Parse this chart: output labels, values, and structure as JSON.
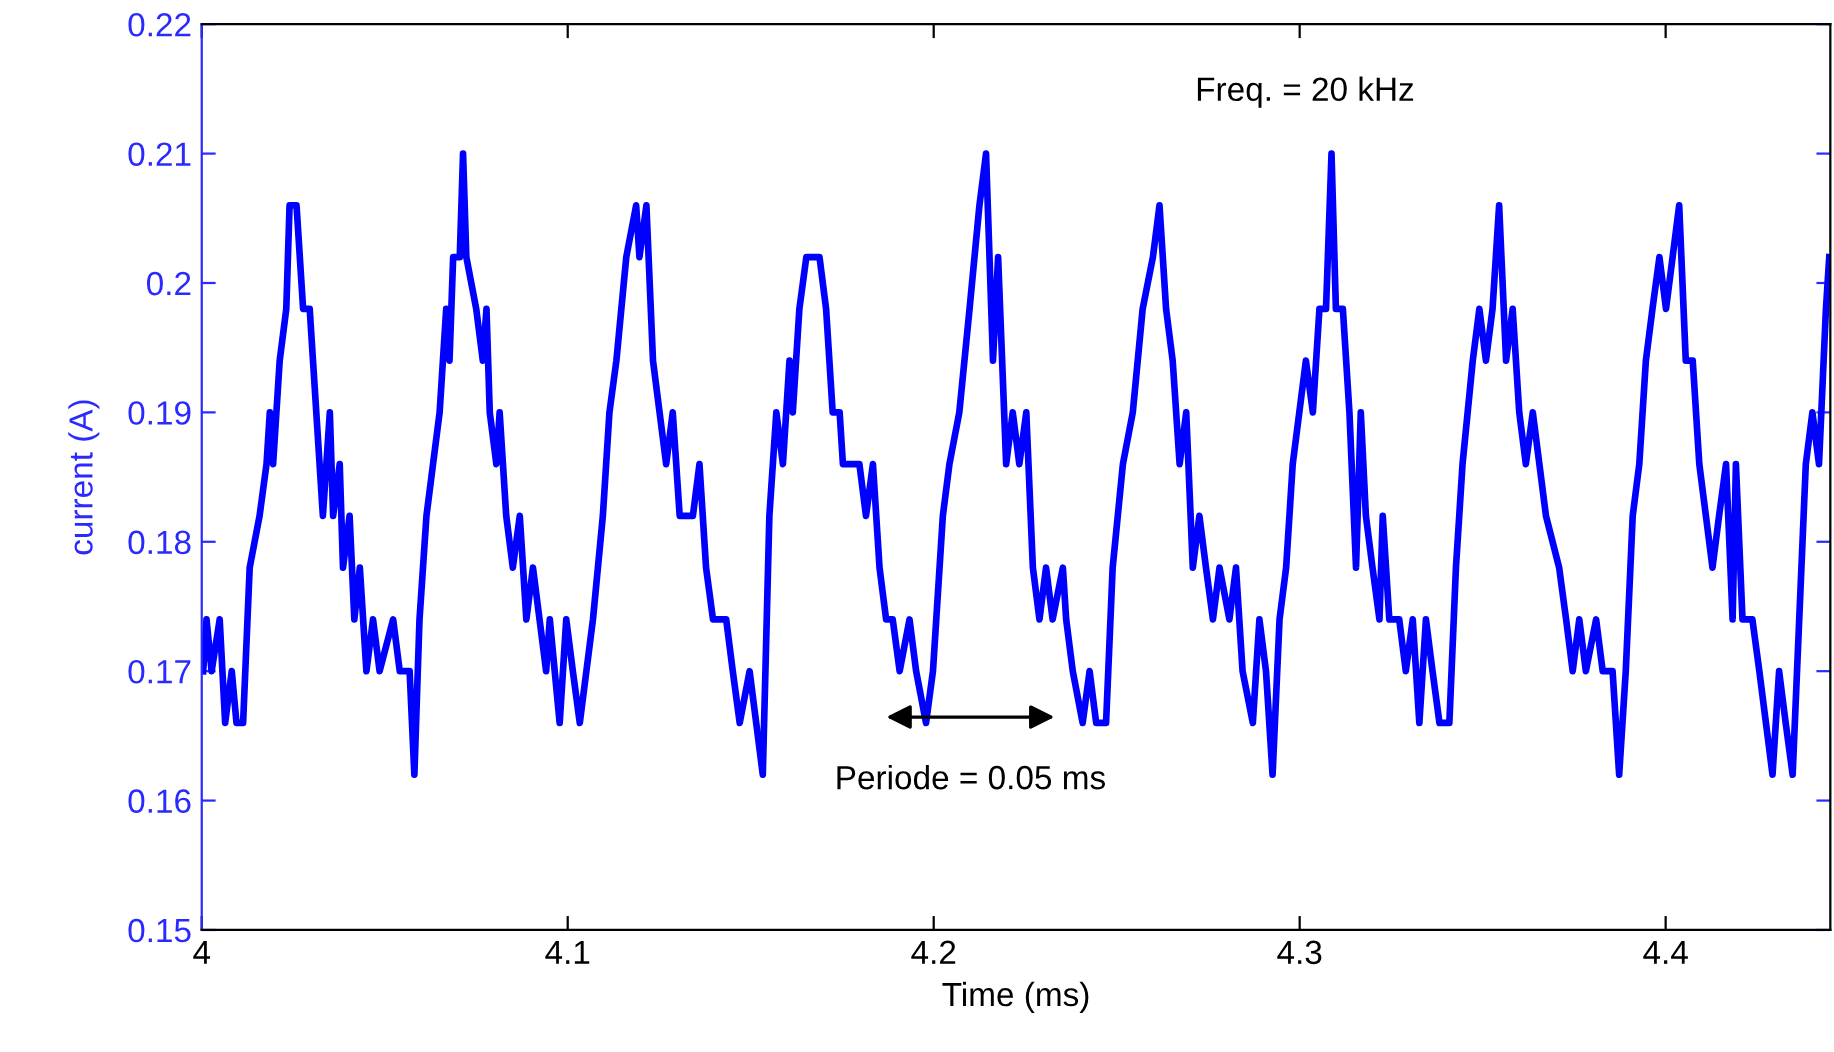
{
  "chart_data": {
    "type": "line",
    "xlabel": "Time (ms)",
    "ylabel": "current (A)",
    "xlim": [
      4,
      4.445
    ],
    "xticks": [
      4,
      4.1,
      4.2,
      4.3,
      4.4
    ],
    "ylim": [
      0.15,
      0.22
    ],
    "yticks": [
      0.15,
      0.16,
      0.17,
      0.18,
      0.19,
      0.2,
      0.21,
      0.22
    ],
    "grid": false,
    "marker": "none",
    "line_style": "solid",
    "annotations": [
      "Periode = 0.05 ms",
      "Freq. = 20 kHz"
    ],
    "series": [
      {
        "color": "#0000ff",
        "x": [
          4.0004,
          4.0013,
          4.0027,
          4.0049,
          4.0064,
          4.0082,
          4.0095,
          4.0113,
          4.0131,
          4.0158,
          4.0177,
          4.0186,
          4.0195,
          4.0213,
          4.0231,
          4.024,
          4.0259,
          4.0277,
          4.0295,
          4.0304,
          4.0331,
          4.035,
          4.0359,
          4.0377,
          4.0386,
          4.0404,
          4.0417,
          4.0432,
          4.045,
          4.0468,
          4.0486,
          4.0523,
          4.0541,
          4.0568,
          4.0581,
          4.0595,
          4.0614,
          4.0632,
          4.065,
          4.0668,
          4.0677,
          4.0687,
          4.0705,
          4.0714,
          4.0723,
          4.075,
          4.0768,
          4.0778,
          4.0787,
          4.0805,
          4.0814,
          4.0832,
          4.085,
          4.0869,
          4.0887,
          4.0905,
          4.0923,
          4.0941,
          4.0951,
          4.0978,
          4.0996,
          4.1014,
          4.1033,
          4.1051,
          4.1069,
          4.1096,
          4.1114,
          4.1133,
          4.116,
          4.1187,
          4.1196,
          4.1215,
          4.1233,
          4.1251,
          4.1269,
          4.1287,
          4.1306,
          4.1342,
          4.136,
          4.1378,
          4.1397,
          4.1433,
          4.1451,
          4.147,
          4.1497,
          4.1515,
          4.1533,
          4.1551,
          4.157,
          4.1588,
          4.1606,
          4.1615,
          4.1633,
          4.1652,
          4.1688,
          4.1706,
          4.1724,
          4.1743,
          4.1752,
          4.1797,
          4.1815,
          4.1834,
          4.1852,
          4.187,
          4.1888,
          4.1907,
          4.1934,
          4.1952,
          4.1979,
          4.1998,
          4.2025,
          4.2043,
          4.207,
          4.2098,
          4.2125,
          4.2143,
          4.2162,
          4.2176,
          4.2198,
          4.2216,
          4.2234,
          4.2253,
          4.2271,
          4.2289,
          4.2307,
          4.2325,
          4.2353,
          4.2362,
          4.238,
          4.2407,
          4.2426,
          4.2444,
          4.2471,
          4.2489,
          4.2517,
          4.2544,
          4.2571,
          4.2599,
          4.2617,
          4.2635,
          4.2653,
          4.2672,
          4.269,
          4.2708,
          4.2726,
          4.2744,
          4.2763,
          4.2781,
          4.2808,
          4.2826,
          4.2844,
          4.2872,
          4.289,
          4.2908,
          4.2926,
          4.2945,
          4.2963,
          4.2981,
          4.2999,
          4.3017,
          4.3036,
          4.3054,
          4.3072,
          4.3087,
          4.3099,
          4.3118,
          4.3136,
          4.3154,
          4.3167,
          4.3181,
          4.3199,
          4.3218,
          4.3227,
          4.3245,
          4.3272,
          4.329,
          4.3309,
          4.3327,
          4.3345,
          4.3363,
          4.3382,
          4.3409,
          4.3427,
          4.3445,
          4.3473,
          4.3491,
          4.3509,
          4.3527,
          4.3545,
          4.3564,
          4.3582,
          4.36,
          4.3618,
          4.3637,
          4.3655,
          4.3673,
          4.3709,
          4.3728,
          4.3746,
          4.3764,
          4.3782,
          4.381,
          4.3828,
          4.3855,
          4.3873,
          4.3891,
          4.391,
          4.3928,
          4.3946,
          4.3964,
          4.3983,
          4.4001,
          4.4019,
          4.4037,
          4.4055,
          4.4074,
          4.4092,
          4.411,
          4.4128,
          4.4146,
          4.4165,
          4.4183,
          4.4192,
          4.421,
          4.4237,
          4.4256,
          4.4274,
          4.4292,
          4.431,
          4.4328,
          4.4347,
          4.4365,
          4.4383,
          4.4401,
          4.4419,
          4.4438,
          4.4447
        ],
        "values": [
          0.17,
          0.174,
          0.17,
          0.174,
          0.166,
          0.17,
          0.166,
          0.166,
          0.178,
          0.182,
          0.186,
          0.19,
          0.186,
          0.194,
          0.198,
          0.206,
          0.206,
          0.198,
          0.198,
          0.194,
          0.182,
          0.19,
          0.182,
          0.186,
          0.178,
          0.182,
          0.174,
          0.178,
          0.17,
          0.174,
          0.17,
          0.174,
          0.17,
          0.17,
          0.162,
          0.174,
          0.182,
          0.186,
          0.19,
          0.198,
          0.194,
          0.202,
          0.202,
          0.21,
          0.202,
          0.198,
          0.194,
          0.198,
          0.19,
          0.186,
          0.19,
          0.182,
          0.178,
          0.182,
          0.174,
          0.178,
          0.174,
          0.17,
          0.174,
          0.166,
          0.174,
          0.17,
          0.166,
          0.17,
          0.174,
          0.182,
          0.19,
          0.194,
          0.202,
          0.206,
          0.202,
          0.206,
          0.194,
          0.19,
          0.186,
          0.19,
          0.182,
          0.182,
          0.186,
          0.178,
          0.174,
          0.174,
          0.17,
          0.166,
          0.17,
          0.166,
          0.162,
          0.182,
          0.19,
          0.186,
          0.194,
          0.19,
          0.198,
          0.202,
          0.202,
          0.198,
          0.19,
          0.19,
          0.186,
          0.186,
          0.182,
          0.186,
          0.178,
          0.174,
          0.174,
          0.17,
          0.174,
          0.17,
          0.166,
          0.17,
          0.182,
          0.186,
          0.19,
          0.198,
          0.206,
          0.21,
          0.194,
          0.202,
          0.186,
          0.19,
          0.186,
          0.19,
          0.178,
          0.174,
          0.178,
          0.174,
          0.178,
          0.174,
          0.17,
          0.166,
          0.17,
          0.166,
          0.166,
          0.178,
          0.186,
          0.19,
          0.198,
          0.202,
          0.206,
          0.198,
          0.194,
          0.186,
          0.19,
          0.178,
          0.182,
          0.178,
          0.174,
          0.178,
          0.174,
          0.178,
          0.17,
          0.166,
          0.174,
          0.17,
          0.162,
          0.174,
          0.178,
          0.186,
          0.19,
          0.194,
          0.19,
          0.198,
          0.198,
          0.21,
          0.198,
          0.198,
          0.19,
          0.178,
          0.19,
          0.182,
          0.178,
          0.174,
          0.182,
          0.174,
          0.174,
          0.17,
          0.174,
          0.166,
          0.174,
          0.17,
          0.166,
          0.166,
          0.178,
          0.186,
          0.194,
          0.198,
          0.194,
          0.198,
          0.206,
          0.194,
          0.198,
          0.19,
          0.186,
          0.19,
          0.186,
          0.182,
          0.178,
          0.174,
          0.17,
          0.174,
          0.17,
          0.174,
          0.17,
          0.17,
          0.162,
          0.17,
          0.182,
          0.186,
          0.194,
          0.198,
          0.202,
          0.198,
          0.202,
          0.206,
          0.194,
          0.194,
          0.186,
          0.182,
          0.178,
          0.182,
          0.186,
          0.174,
          0.186,
          0.174,
          0.174,
          0.17,
          0.166,
          0.162,
          0.17,
          0.166,
          0.162,
          0.174,
          0.186,
          0.19,
          0.186,
          0.198,
          0.202
        ]
      }
    ]
  }
}
